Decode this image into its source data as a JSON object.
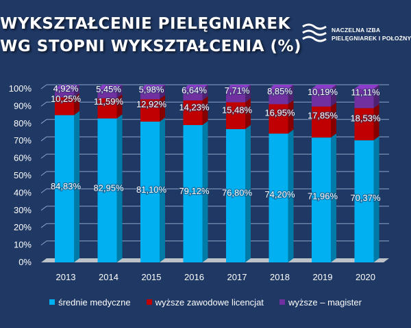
{
  "title": {
    "line1": "WYKSZTAŁCENIE PIELĘGNIAREK",
    "line2": "WG STOPNI WYKSZTAŁCENIA (%)"
  },
  "logo": {
    "line1": "NACZELNA IZBA",
    "line2": "PIELĘGNIAREK I POŁOŻNYCH",
    "icon": "wave-lines-icon"
  },
  "colors": {
    "background": "#1f3864",
    "series": [
      "#00b0f0",
      "#c00000",
      "#7030a0"
    ]
  },
  "chart_data": {
    "type": "bar",
    "stacked": true,
    "stacked_percent": true,
    "categories": [
      "2013",
      "2014",
      "2015",
      "2016",
      "2017",
      "2018",
      "2019",
      "2020"
    ],
    "series": [
      {
        "name": "średnie medyczne",
        "values": [
          84.83,
          82.95,
          81.1,
          79.12,
          76.8,
          74.2,
          71.96,
          70.37
        ],
        "labels": [
          "84,83%",
          "82,95%",
          "81,10%",
          "79,12%",
          "76,80%",
          "74,20%",
          "71,96%",
          "70,37%"
        ]
      },
      {
        "name": "wyższe zawodowe licencjat",
        "values": [
          10.25,
          11.59,
          12.92,
          14.23,
          15.48,
          16.95,
          17.85,
          18.53
        ],
        "labels": [
          "10,25%",
          "11,59%",
          "12,92%",
          "14,23%",
          "15,48%",
          "16,95%",
          "17,85%",
          "18,53%"
        ]
      },
      {
        "name": "wyższe – magister",
        "values": [
          4.92,
          5.45,
          5.98,
          6.64,
          7.71,
          8.85,
          10.19,
          11.11
        ],
        "labels": [
          "4,92%",
          "5,45%",
          "5,98%",
          "6,64%",
          "7,71%",
          "8,85%",
          "10,19%",
          "11,11%"
        ]
      }
    ],
    "y_ticks": [
      "0%",
      "10%",
      "20%",
      "30%",
      "40%",
      "50%",
      "60%",
      "70%",
      "80%",
      "90%",
      "100%"
    ],
    "ylim": [
      0,
      100
    ],
    "grid": true,
    "legend_position": "bottom",
    "three_d": true
  }
}
